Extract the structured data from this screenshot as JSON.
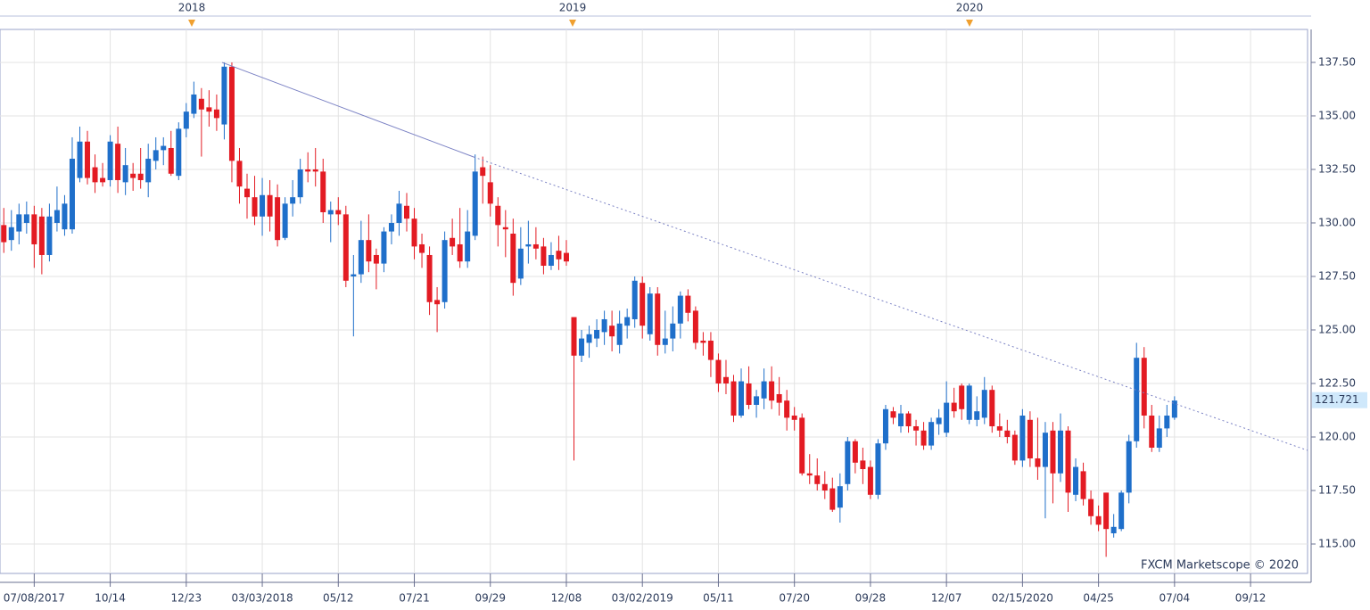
{
  "chart_data": {
    "type": "candlestick",
    "watermark": "FXCM Marketscope © 2020",
    "years": [
      "2018",
      "2019",
      "2020"
    ],
    "current_price": 121.721,
    "up_color": "#1f6fca",
    "down_color": "#e31b23",
    "grid": true,
    "ylim": [
      113.625,
      139.04
    ],
    "yticks": [
      {
        "value": 115,
        "label": "115.00"
      },
      {
        "value": 117.5,
        "label": "117.50"
      },
      {
        "value": 120,
        "label": "120.00"
      },
      {
        "value": 122.5,
        "label": "122.50"
      },
      {
        "value": 125,
        "label": "125.00"
      },
      {
        "value": 127.5,
        "label": "127.50"
      },
      {
        "value": 130,
        "label": "130.00"
      },
      {
        "value": 132.5,
        "label": "132.50"
      },
      {
        "value": 135,
        "label": "135.00"
      },
      {
        "value": 137.5,
        "label": "137.50"
      }
    ],
    "categories": [
      null,
      null,
      null,
      null,
      "07/08/2017",
      null,
      null,
      null,
      null,
      null,
      null,
      null,
      null,
      null,
      "10/14",
      null,
      null,
      null,
      null,
      null,
      null,
      null,
      null,
      null,
      "12/23",
      null,
      null,
      null,
      null,
      null,
      null,
      null,
      null,
      null,
      "03/03/2018",
      null,
      null,
      null,
      null,
      null,
      null,
      null,
      null,
      null,
      "05/12",
      null,
      null,
      null,
      null,
      null,
      null,
      null,
      null,
      null,
      "07/21",
      null,
      null,
      null,
      null,
      null,
      null,
      null,
      null,
      null,
      "09/29",
      null,
      null,
      null,
      null,
      null,
      null,
      null,
      null,
      null,
      "12/08",
      null,
      null,
      null,
      null,
      null,
      null,
      null,
      null,
      null,
      "03/02/2019",
      null,
      null,
      null,
      null,
      null,
      null,
      null,
      null,
      null,
      "05/11",
      null,
      null,
      null,
      null,
      null,
      null,
      null,
      null,
      null,
      "07/20",
      null,
      null,
      null,
      null,
      null,
      null,
      null,
      null,
      null,
      "09/28",
      null,
      null,
      null,
      null,
      null,
      null,
      null,
      null,
      null,
      "12/07",
      null,
      null,
      null,
      null,
      null,
      null,
      null,
      null,
      null,
      "02/15/2020",
      null,
      null,
      null,
      null,
      null,
      null,
      null,
      null,
      null,
      "04/25",
      null,
      null,
      null,
      null,
      null,
      null,
      null,
      null,
      null,
      "07/04",
      null,
      null,
      null,
      null,
      null,
      null,
      null,
      null,
      null,
      "09/12",
      null,
      null,
      null,
      null,
      null,
      null,
      null
    ],
    "open": [
      129.9,
      129.2,
      129.6,
      130.0,
      130.4,
      130.3,
      128.5,
      130.0,
      129.7,
      129.7,
      132.1,
      133.8,
      132.6,
      132.1,
      132.0,
      133.7,
      131.9,
      132.3,
      132.3,
      131.9,
      132.9,
      133.4,
      133.5,
      132.2,
      134.4,
      135.1,
      135.8,
      135.4,
      135.3,
      134.6,
      137.3,
      132.9,
      131.6,
      131.2,
      130.3,
      131.3,
      131.2,
      129.3,
      130.9,
      131.2,
      132.5,
      132.5,
      132.4,
      130.4,
      130.6,
      130.4,
      127.5,
      127.6,
      129.2,
      128.5,
      128.1,
      129.6,
      130.0,
      130.8,
      130.2,
      129.0,
      128.5,
      126.4,
      126.3,
      129.3,
      129.0,
      128.2,
      129.4,
      132.6,
      131.9,
      130.8,
      129.8,
      129.5,
      127.4,
      128.9,
      129.0,
      128.9,
      128.0,
      128.7,
      128.6,
      125.6,
      123.8,
      124.4,
      124.6,
      124.9,
      125.2,
      124.3,
      125.2,
      125.5,
      127.2,
      124.8,
      126.7,
      124.3,
      124.6,
      125.3,
      126.6,
      125.9,
      124.5,
      124.5,
      123.6,
      122.8,
      122.6,
      121.0,
      122.5,
      121.5,
      121.8,
      122.6,
      122.0,
      121.7,
      121.0,
      120.9,
      118.3,
      118.2,
      117.8,
      117.6,
      116.7,
      117.8,
      119.8,
      118.9,
      118.6,
      117.3,
      119.7,
      121.2,
      120.5,
      121.1,
      120.5,
      120.3,
      119.6,
      120.6,
      120.2,
      121.6,
      122.4,
      120.8,
      120.8,
      120.9,
      122.2,
      120.5,
      120.3,
      120.1,
      118.9,
      120.8,
      119.0,
      118.6,
      120.3,
      118.3,
      120.3,
      117.3,
      118.4,
      117.1,
      116.3,
      117.4,
      115.5,
      115.7,
      117.4,
      119.8,
      123.7,
      121.0,
      119.5,
      120.4,
      120.9,
      null,
      null,
      null,
      null,
      null,
      null,
      null,
      null,
      null,
      null,
      null,
      null,
      null,
      null,
      null,
      null,
      null
    ],
    "high": [
      130.7,
      130.6,
      130.9,
      131.0,
      130.8,
      130.7,
      130.9,
      131.7,
      131.3,
      134.0,
      134.5,
      134.3,
      133.2,
      132.8,
      134.1,
      134.5,
      133.5,
      132.8,
      133.5,
      133.7,
      134.0,
      134.0,
      134.3,
      134.7,
      135.6,
      136.6,
      136.3,
      136.2,
      136.0,
      137.5,
      137.5,
      133.5,
      132.3,
      132.2,
      132.1,
      132.0,
      131.8,
      131.2,
      132.0,
      133.0,
      133.3,
      133.5,
      133.0,
      131.0,
      131.2,
      130.8,
      128.5,
      130.1,
      130.4,
      128.8,
      129.8,
      130.4,
      131.5,
      131.4,
      130.7,
      129.5,
      128.9,
      127.0,
      129.6,
      130.2,
      130.7,
      130.6,
      133.2,
      133.1,
      132.7,
      131.2,
      130.6,
      130.2,
      129.8,
      130.1,
      129.8,
      129.3,
      129.1,
      129.4,
      129.2,
      125.6,
      125.0,
      125.2,
      125.5,
      125.9,
      125.9,
      125.9,
      126.0,
      127.5,
      127.5,
      127.0,
      127.0,
      125.9,
      126.1,
      126.8,
      126.9,
      126.1,
      124.9,
      124.9,
      123.9,
      123.6,
      122.9,
      123.2,
      123.3,
      122.2,
      123.2,
      123.3,
      122.8,
      122.2,
      121.4,
      121.1,
      119.2,
      119.0,
      118.4,
      118.1,
      118.3,
      120.0,
      119.9,
      119.5,
      118.9,
      119.9,
      121.5,
      121.4,
      121.5,
      121.2,
      120.8,
      120.7,
      120.9,
      121.3,
      122.6,
      122.3,
      122.5,
      122.5,
      121.9,
      122.8,
      122.4,
      121.1,
      120.8,
      120.3,
      121.3,
      121.2,
      120.9,
      120.7,
      120.7,
      121.1,
      120.5,
      119.0,
      118.8,
      117.5,
      116.8,
      117.4,
      116.4,
      117.5,
      120.1,
      124.4,
      124.2,
      121.5,
      121.0,
      121.5,
      121.9,
      null,
      null,
      null,
      null,
      null,
      null,
      null,
      null,
      null,
      null,
      null,
      null,
      null,
      null,
      null,
      null,
      null
    ],
    "low": [
      128.6,
      128.7,
      129.0,
      129.5,
      127.9,
      127.6,
      128.2,
      129.6,
      129.4,
      129.5,
      131.9,
      131.8,
      131.4,
      131.7,
      131.7,
      131.4,
      131.3,
      131.5,
      131.6,
      131.2,
      132.5,
      132.7,
      132.2,
      132.0,
      134.0,
      134.9,
      133.1,
      134.5,
      134.3,
      133.9,
      131.9,
      130.9,
      130.2,
      129.9,
      129.4,
      129.6,
      128.9,
      129.2,
      130.3,
      130.9,
      131.9,
      131.7,
      130.0,
      129.1,
      129.9,
      127.0,
      124.7,
      127.2,
      127.7,
      126.9,
      127.7,
      129.0,
      129.4,
      129.6,
      128.3,
      127.9,
      125.7,
      124.9,
      126.0,
      128.5,
      127.9,
      127.9,
      129.2,
      130.9,
      130.3,
      128.9,
      128.4,
      126.6,
      127.1,
      128.1,
      128.3,
      127.6,
      127.8,
      127.8,
      128.0,
      118.9,
      123.5,
      123.7,
      124.2,
      124.3,
      124.0,
      123.9,
      124.6,
      125.1,
      124.6,
      124.5,
      123.8,
      123.9,
      124.0,
      124.6,
      125.4,
      124.1,
      123.8,
      122.8,
      122.1,
      122.0,
      120.7,
      120.9,
      121.3,
      120.9,
      121.3,
      121.3,
      121.0,
      120.3,
      120.3,
      118.2,
      117.8,
      117.5,
      117.1,
      116.5,
      116.0,
      117.5,
      118.3,
      117.8,
      117.1,
      117.1,
      119.4,
      120.6,
      120.2,
      120.2,
      119.6,
      119.4,
      119.4,
      120.1,
      120.0,
      120.9,
      120.8,
      120.6,
      120.5,
      120.6,
      120.2,
      120.0,
      119.7,
      118.7,
      118.6,
      118.6,
      118.0,
      116.2,
      116.9,
      117.9,
      116.5,
      117.0,
      116.8,
      115.9,
      115.6,
      114.4,
      115.3,
      115.6,
      116.9,
      119.5,
      120.4,
      119.3,
      119.3,
      120.0,
      120.8,
      null,
      null,
      null,
      null,
      null,
      null,
      null,
      null,
      null,
      null,
      null,
      null,
      null,
      null,
      null,
      null,
      null
    ],
    "close": [
      129.1,
      129.8,
      130.4,
      130.4,
      129.0,
      128.5,
      130.3,
      130.6,
      130.9,
      133.0,
      133.8,
      132.1,
      131.9,
      131.9,
      133.8,
      132.0,
      132.7,
      132.1,
      132.0,
      133.0,
      133.4,
      133.6,
      132.3,
      134.4,
      135.2,
      136.0,
      135.3,
      135.2,
      134.9,
      137.3,
      132.9,
      131.7,
      131.2,
      130.3,
      131.3,
      130.3,
      129.2,
      130.9,
      131.2,
      132.5,
      132.4,
      132.4,
      130.5,
      130.6,
      130.4,
      127.3,
      127.6,
      129.2,
      128.2,
      128.1,
      129.6,
      130.0,
      130.9,
      130.2,
      128.9,
      128.6,
      126.3,
      126.2,
      129.2,
      128.9,
      128.2,
      129.6,
      132.4,
      132.2,
      130.9,
      129.9,
      129.7,
      127.2,
      128.8,
      129.0,
      128.8,
      128.0,
      128.5,
      128.3,
      128.2,
      123.8,
      124.6,
      124.8,
      125.0,
      125.5,
      124.7,
      125.3,
      125.6,
      127.3,
      125.2,
      126.7,
      124.3,
      124.6,
      125.3,
      126.6,
      125.8,
      124.4,
      124.4,
      123.6,
      122.5,
      122.5,
      121.0,
      122.6,
      121.5,
      121.9,
      122.6,
      121.7,
      121.6,
      120.9,
      120.8,
      118.3,
      118.2,
      117.8,
      117.5,
      116.6,
      117.7,
      119.8,
      118.8,
      118.5,
      117.3,
      119.7,
      121.3,
      120.9,
      121.1,
      120.5,
      120.3,
      119.6,
      120.7,
      120.9,
      121.6,
      121.2,
      121.3,
      122.4,
      121.2,
      122.2,
      120.5,
      120.3,
      120.0,
      118.9,
      121.0,
      119.0,
      118.6,
      120.2,
      118.3,
      120.3,
      117.4,
      118.6,
      117.1,
      116.3,
      115.9,
      115.7,
      115.8,
      117.4,
      119.8,
      123.7,
      121.0,
      119.5,
      120.4,
      121.0,
      121.7,
      null,
      null,
      null,
      null,
      null,
      null,
      null,
      null,
      null,
      null,
      null,
      null,
      null,
      null,
      null,
      null,
      null
    ]
  }
}
